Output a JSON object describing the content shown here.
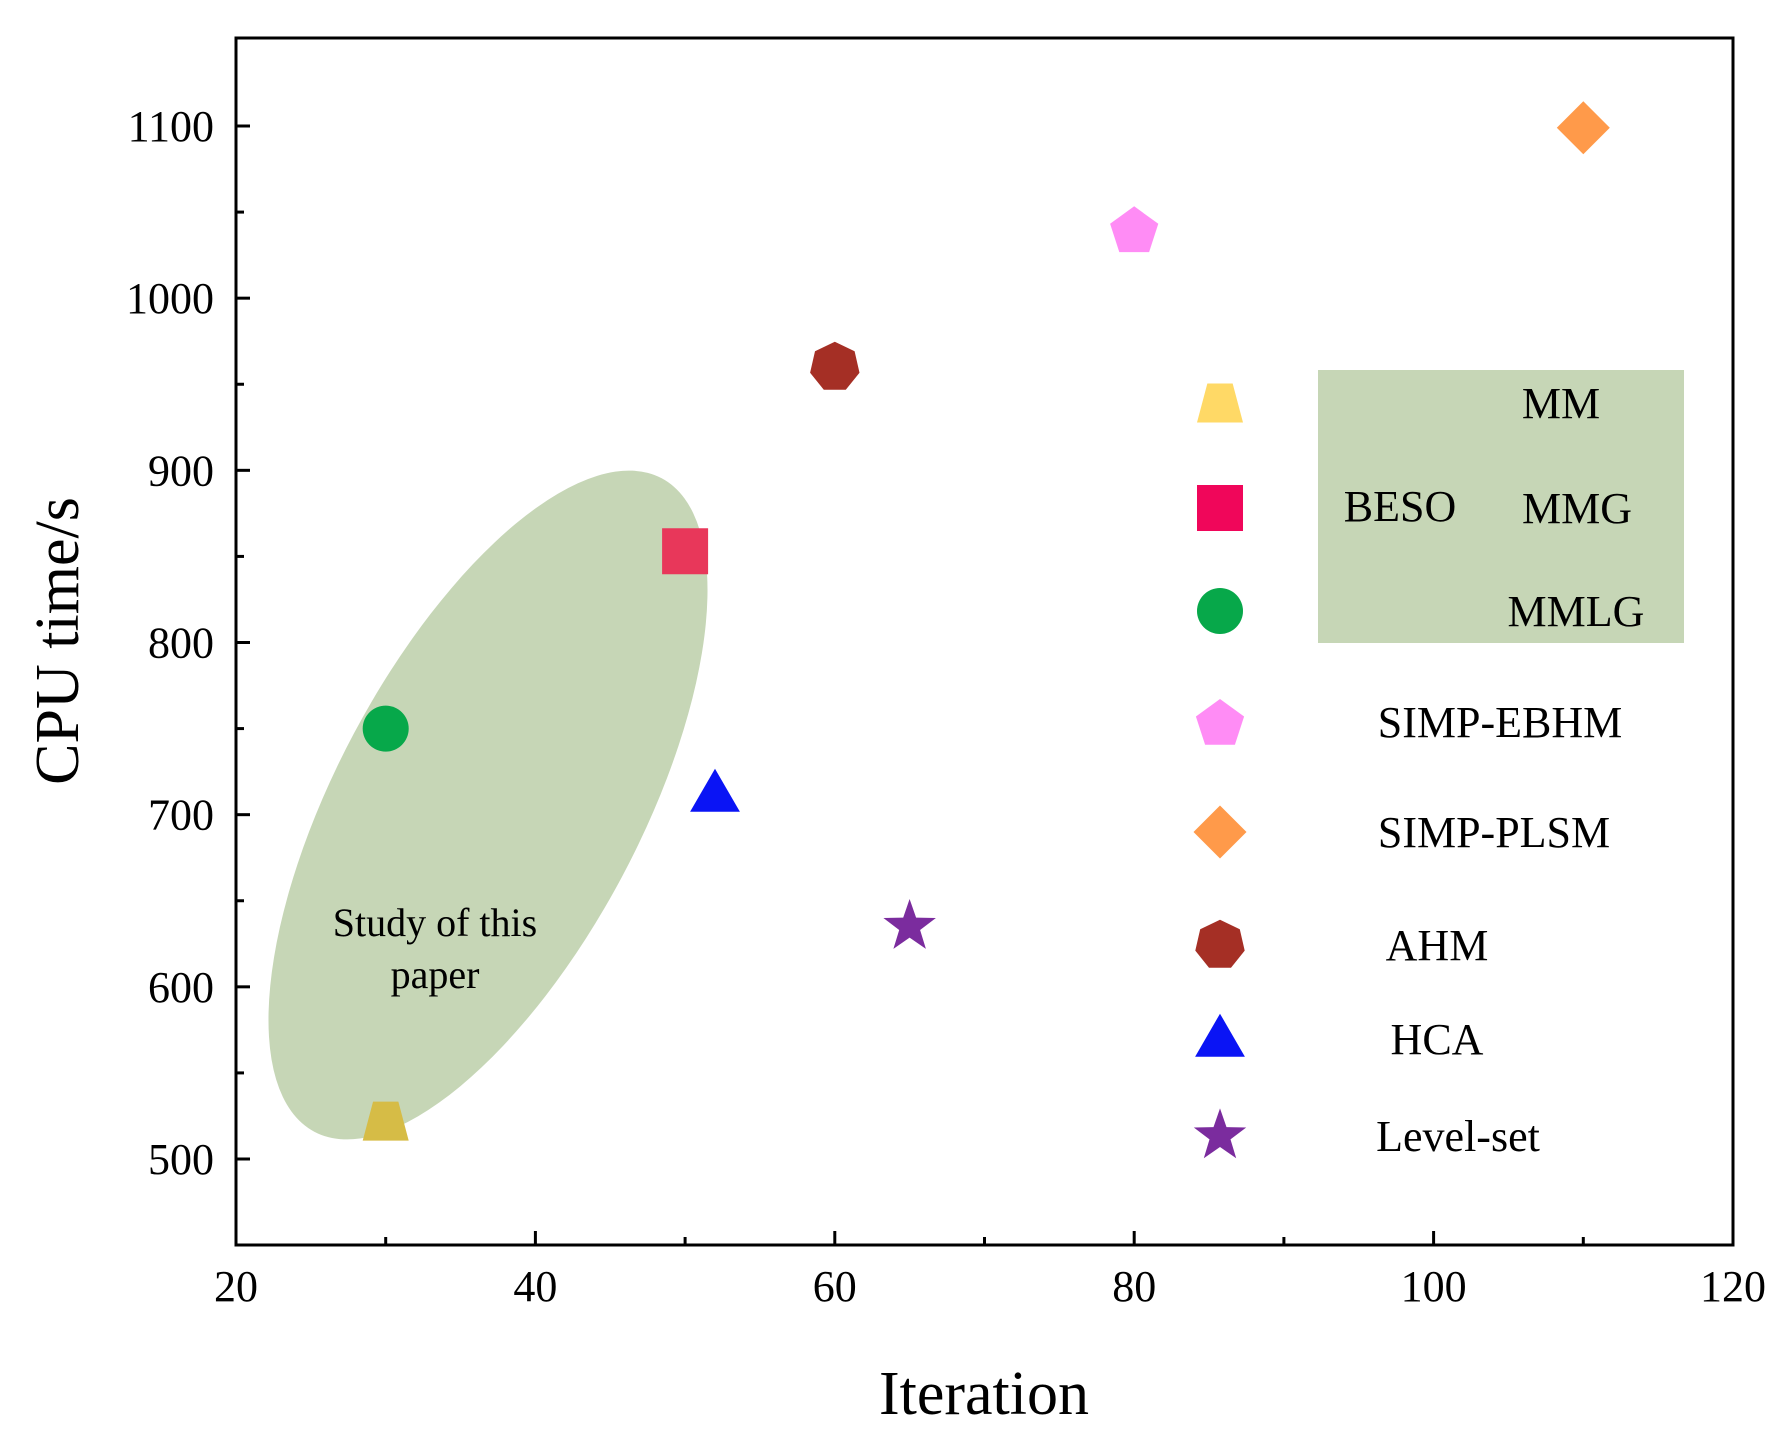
{
  "chart_data": {
    "type": "scatter",
    "title": "",
    "xlabel": "Iteration",
    "ylabel": "CPU time/s",
    "xlim": [
      20,
      120
    ],
    "ylim": [
      465,
      1150
    ],
    "xticks": [
      20,
      40,
      60,
      80,
      100,
      120
    ],
    "yticks": [
      500,
      600,
      700,
      800,
      900,
      1000,
      1100
    ],
    "grid": false,
    "legend_position": "right",
    "series": [
      {
        "name": "MM",
        "marker": "trapezoid",
        "color": "#d6bc46",
        "legend_color": "#ffd966",
        "points": [
          {
            "x": 30,
            "y": 522
          }
        ]
      },
      {
        "name": "MMG",
        "marker": "square",
        "color": "#e8375a",
        "legend_color": "#f0065a",
        "points": [
          {
            "x": 50,
            "y": 853
          }
        ]
      },
      {
        "name": "MMLG",
        "marker": "circle",
        "color": "#07a84a",
        "legend_color": "#07a84a",
        "points": [
          {
            "x": 30,
            "y": 750
          }
        ]
      },
      {
        "name": "SIMP-EBHM",
        "marker": "pentagon",
        "color": "#ff8cf5",
        "legend_color": "#ff8cf5",
        "points": [
          {
            "x": 80,
            "y": 1040
          }
        ]
      },
      {
        "name": "SIMP-PLSM",
        "marker": "diamond",
        "color": "#ff9a4a",
        "legend_color": "#ff9a4a",
        "points": [
          {
            "x": 110,
            "y": 1099
          }
        ]
      },
      {
        "name": "AHM",
        "marker": "heptagon",
        "color": "#a52f25",
        "legend_color": "#a52f25",
        "points": [
          {
            "x": 60,
            "y": 960
          }
        ]
      },
      {
        "name": "HCA",
        "marker": "triangle",
        "color": "#0a14f5",
        "legend_color": "#0a14f5",
        "points": [
          {
            "x": 52,
            "y": 712
          }
        ]
      },
      {
        "name": "Level-set",
        "marker": "star",
        "color": "#7b2c9e",
        "legend_color": "#7b2c9e",
        "points": [
          {
            "x": 65,
            "y": 635
          }
        ]
      }
    ],
    "legend_group_label": "BESO",
    "annotation": {
      "line1": "Study of this",
      "line2": "paper",
      "color": "#c6d6b6"
    },
    "legend_group_color": "#c6d6b6"
  }
}
